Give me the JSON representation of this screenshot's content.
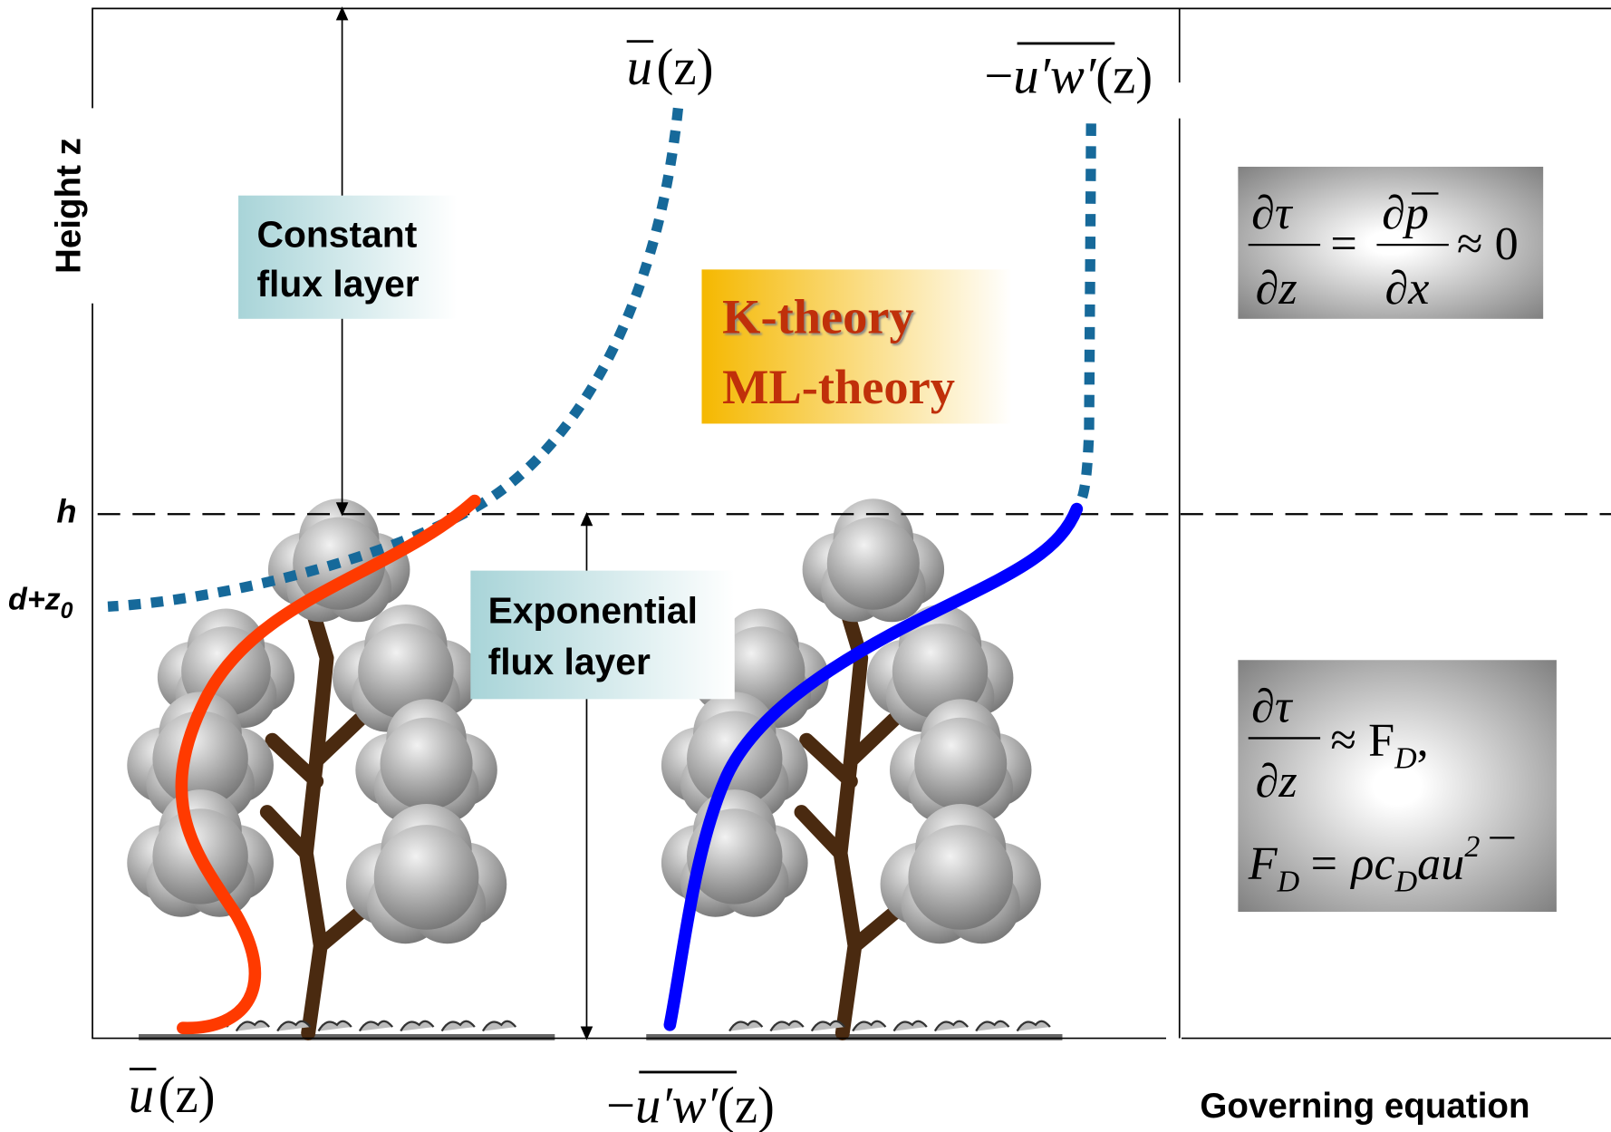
{
  "axis_label": "Height z",
  "levels": {
    "h": "h",
    "d_plus_z0": {
      "base": "d+z",
      "subscript": "0"
    }
  },
  "regions": {
    "constant_flux": [
      "Constant",
      "flux layer"
    ],
    "exponential_flux": [
      "Exponential",
      "flux layer"
    ],
    "theories": [
      "K-theory",
      "ML-theory"
    ]
  },
  "profiles": {
    "mean_velocity": {
      "var": "u",
      "arg": "(z)"
    },
    "stress": {
      "sign": "−",
      "var": "u′w′",
      "arg": "(z)"
    }
  },
  "equations": {
    "above_canopy": {
      "lhs_num": "∂τ",
      "lhs_den": "∂z",
      "rel": "=",
      "rhs_num": "∂p",
      "rhs_den": "∂x",
      "tail": "≈ 0"
    },
    "in_canopy": {
      "lhs_num": "∂τ",
      "lhs_den": "∂z",
      "rel": "≈ F",
      "rel_sub": "D",
      "comma": ",",
      "drag": [
        "F",
        "D",
        "= ρc",
        "D",
        "au",
        "2"
      ]
    }
  },
  "footer": "Governing equation"
}
